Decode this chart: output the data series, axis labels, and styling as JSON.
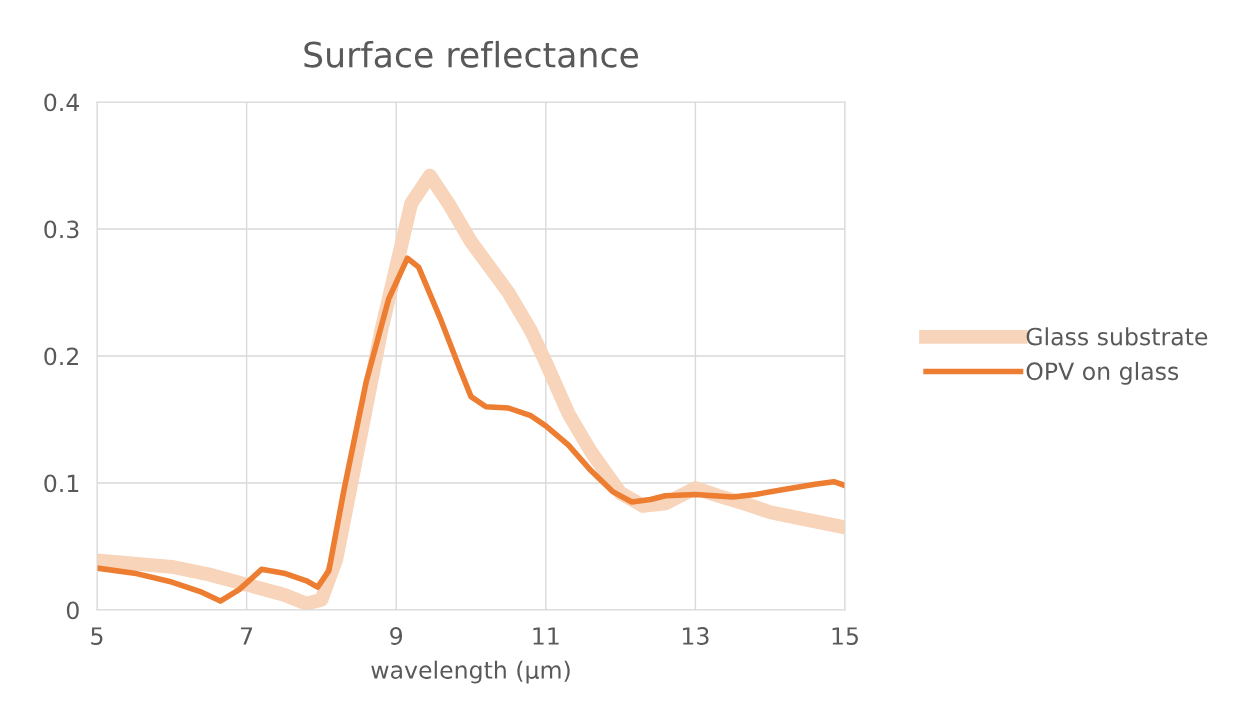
{
  "chart_data": {
    "type": "line",
    "title": "Surface reflectance",
    "xlabel": "wavelength (µm)",
    "xlim": [
      5,
      15
    ],
    "xticks": [
      5,
      7,
      9,
      11,
      13,
      15
    ],
    "ylim": [
      0,
      0.4
    ],
    "yticks": [
      0,
      0.1,
      0.2,
      0.3,
      0.4
    ],
    "grid": true,
    "legend": "right",
    "marker": "none",
    "line_style": "solid",
    "series": [
      {
        "name": "Glass substrate",
        "color": "#f7d4ba",
        "x": [
          5,
          6,
          6.5,
          7,
          7.5,
          7.8,
          8.0,
          8.2,
          8.5,
          8.8,
          9.0,
          9.2,
          9.45,
          9.7,
          10.0,
          10.5,
          10.8,
          11.0,
          11.3,
          11.6,
          12.0,
          12.3,
          12.6,
          13.0,
          13.3,
          13.7,
          14.0,
          14.5,
          15
        ],
        "values": [
          0.039,
          0.034,
          0.028,
          0.02,
          0.012,
          0.005,
          0.008,
          0.04,
          0.13,
          0.22,
          0.27,
          0.32,
          0.342,
          0.32,
          0.29,
          0.25,
          0.22,
          0.195,
          0.155,
          0.125,
          0.092,
          0.082,
          0.084,
          0.096,
          0.09,
          0.083,
          0.077,
          0.071,
          0.065
        ]
      },
      {
        "name": "OPV on glass",
        "color": "#ed7d31",
        "x": [
          5,
          5.5,
          6.0,
          6.4,
          6.65,
          6.9,
          7.2,
          7.5,
          7.8,
          7.95,
          8.1,
          8.3,
          8.6,
          8.9,
          9.15,
          9.3,
          9.6,
          9.85,
          10.0,
          10.2,
          10.5,
          10.8,
          11.0,
          11.3,
          11.6,
          11.9,
          12.15,
          12.4,
          12.6,
          13.0,
          13.5,
          13.8,
          14.2,
          14.6,
          14.85,
          15
        ],
        "values": [
          0.033,
          0.029,
          0.022,
          0.014,
          0.007,
          0.016,
          0.032,
          0.029,
          0.023,
          0.018,
          0.031,
          0.094,
          0.18,
          0.245,
          0.277,
          0.27,
          0.228,
          0.19,
          0.168,
          0.16,
          0.159,
          0.153,
          0.145,
          0.13,
          0.11,
          0.093,
          0.085,
          0.087,
          0.09,
          0.091,
          0.089,
          0.091,
          0.095,
          0.099,
          0.101,
          0.098
        ]
      }
    ]
  }
}
